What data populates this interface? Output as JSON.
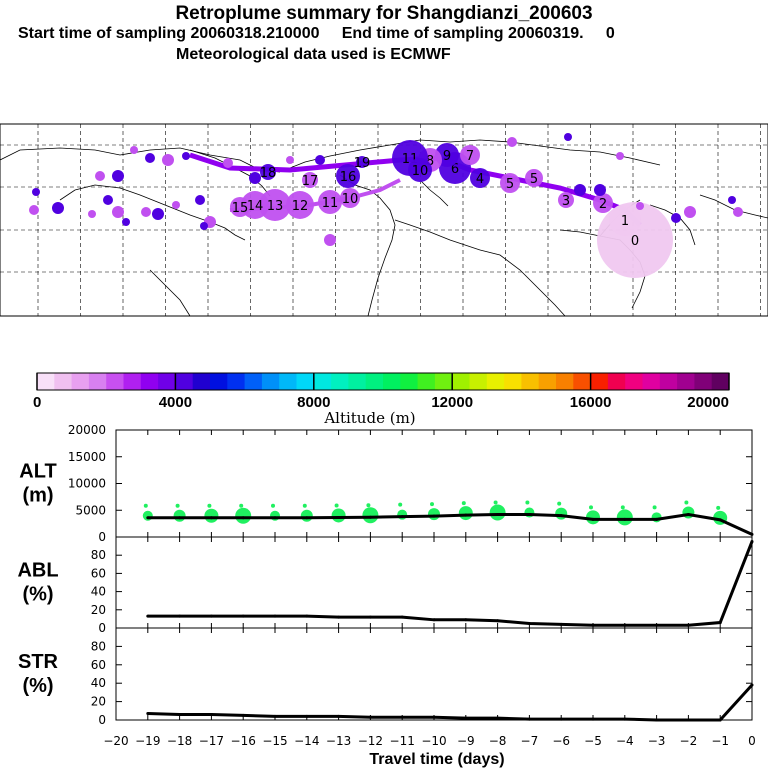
{
  "header": {
    "title": "Retroplume summary for Shangdianzi_200603",
    "subtitle": "Start time of sampling 20060318.210000     End time of sampling 20060319.     0",
    "met_line": "Meteorological data used is ECMWF"
  },
  "colorbar": {
    "tick_labels": [
      "0",
      "4000",
      "8000",
      "12000",
      "16000",
      "20000"
    ],
    "title": "Altitude (m)",
    "colors": [
      "#f8e0f8",
      "#f0c0f0",
      "#e8a0f0",
      "#d880f0",
      "#c850f0",
      "#b020f0",
      "#9000f0",
      "#7000e8",
      "#5000e0",
      "#2000d0",
      "#0010e0",
      "#0030f0",
      "#0060f8",
      "#0090f8",
      "#00b8f8",
      "#00d8f8",
      "#00e8e0",
      "#00f0c0",
      "#00f0a0",
      "#00f080",
      "#00f060",
      "#10f040",
      "#40f020",
      "#70f010",
      "#a0f000",
      "#c8f000",
      "#e8f000",
      "#f8e000",
      "#f8c000",
      "#f8a000",
      "#f88000",
      "#f85000",
      "#f82000",
      "#f00050",
      "#f00080",
      "#e000a0",
      "#c000a0",
      "#a00090",
      "#800078",
      "#600060"
    ]
  },
  "map": {
    "trajectory_labels": [
      "0",
      "1",
      "2",
      "3",
      "4",
      "5",
      "6",
      "7",
      "8",
      "9",
      "10",
      "11",
      "12",
      "13",
      "14",
      "15",
      "16",
      "17",
      "18",
      "19"
    ],
    "colors": {
      "plume_light": "#f0c8f0",
      "plume_mid": "#c050f0",
      "plume_dark": "#5000e0",
      "track": "#9000f0"
    }
  },
  "chart_data": [
    {
      "type": "line",
      "panel": "ALT",
      "ylabel": "ALT\n(m)",
      "x": [
        -19,
        -18,
        -17,
        -16,
        -15,
        -14,
        -13,
        -12,
        -11,
        -10,
        -9,
        -8,
        -7,
        -6,
        -5,
        -4,
        -3,
        -2,
        -1,
        0
      ],
      "values": [
        3600,
        3600,
        3600,
        3600,
        3600,
        3600,
        3650,
        3700,
        3800,
        3900,
        4100,
        4200,
        4200,
        4000,
        3300,
        3300,
        3300,
        4200,
        3200,
        500
      ],
      "xlim": [
        -20,
        0
      ],
      "ylim": [
        0,
        20000
      ],
      "yticks": [
        "0",
        "5000",
        "10000",
        "15000",
        "20000"
      ]
    },
    {
      "type": "line",
      "panel": "ABL",
      "ylabel": "ABL\n(%)",
      "x": [
        -19,
        -18,
        -17,
        -16,
        -15,
        -14,
        -13,
        -12,
        -11,
        -10,
        -9,
        -8,
        -7,
        -6,
        -5,
        -4,
        -3,
        -2,
        -1,
        0
      ],
      "values": [
        13,
        13,
        13,
        13,
        13,
        13,
        12,
        12,
        12,
        9,
        9,
        8,
        5,
        4,
        3,
        3,
        3,
        3,
        6,
        95
      ],
      "xlim": [
        -20,
        0
      ],
      "ylim": [
        0,
        100
      ],
      "yticks": [
        "0",
        "20",
        "40",
        "60",
        "80"
      ]
    },
    {
      "type": "line",
      "panel": "STR",
      "ylabel": "STR\n(%)",
      "x": [
        -19,
        -18,
        -17,
        -16,
        -15,
        -14,
        -13,
        -12,
        -11,
        -10,
        -9,
        -8,
        -7,
        -6,
        -5,
        -4,
        -3,
        -2,
        -1,
        0
      ],
      "values": [
        7,
        6,
        6,
        5,
        4,
        4,
        4,
        3,
        3,
        3,
        2,
        2,
        1,
        1,
        1,
        1,
        0,
        0,
        0,
        38
      ],
      "xlim": [
        -20,
        0
      ],
      "ylim": [
        0,
        100
      ],
      "yticks": [
        "0",
        "20",
        "40",
        "60",
        "80"
      ]
    }
  ],
  "xaxis": {
    "title": "Travel time (days)",
    "tick_labels": [
      "−20",
      "−19",
      "−18",
      "−17",
      "−16",
      "−15",
      "−14",
      "−13",
      "−12",
      "−11",
      "−10",
      "−9",
      "−8",
      "−7",
      "−6",
      "−5",
      "−4",
      "−3",
      "−2",
      "−1",
      "0"
    ]
  }
}
